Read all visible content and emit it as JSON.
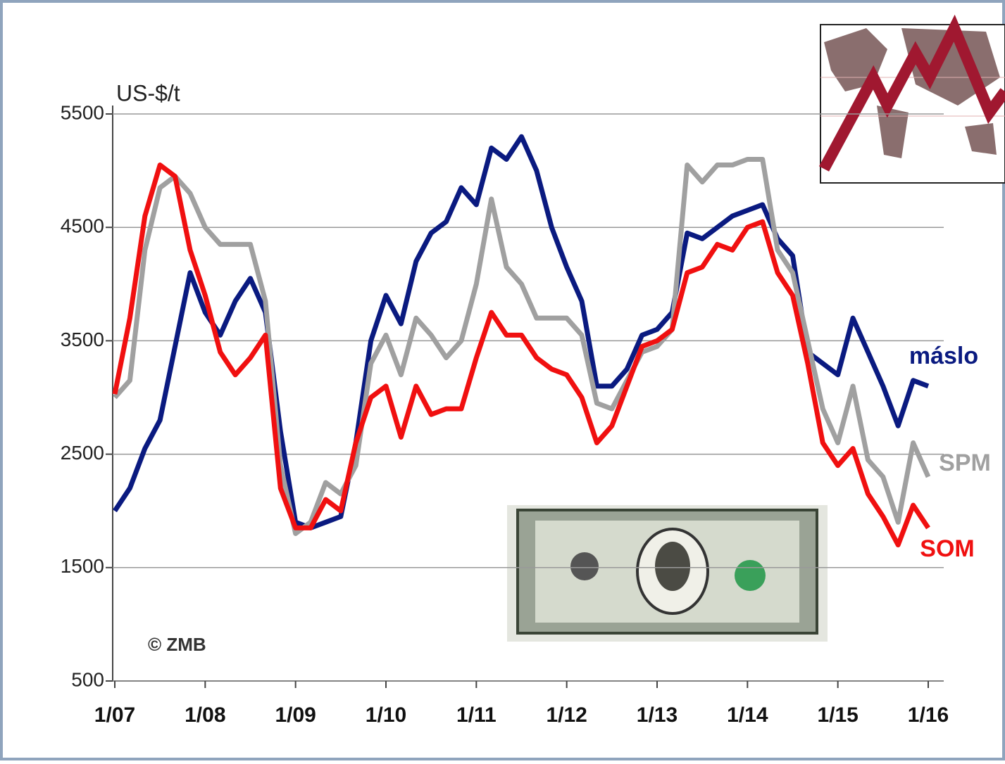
{
  "chart_data": {
    "type": "line",
    "y_label": "US-$/t",
    "annotation": "© ZMB",
    "categories": [
      "1/07",
      null,
      null,
      null,
      null,
      null,
      "1/08",
      null,
      null,
      null,
      null,
      null,
      "1/09",
      null,
      null,
      null,
      null,
      null,
      "1/10",
      null,
      null,
      null,
      null,
      null,
      "1/11",
      null,
      null,
      null,
      null,
      null,
      "1/12",
      null,
      null,
      null,
      null,
      null,
      "1/13",
      null,
      null,
      null,
      null,
      null,
      "1/14",
      null,
      null,
      null,
      null,
      null,
      "1/15",
      null,
      null,
      null,
      null,
      null,
      "1/16"
    ],
    "series": [
      {
        "name": "máslo",
        "color": "#0a1a80",
        "values": [
          2000,
          2200,
          2550,
          2800,
          3450,
          4100,
          3750,
          3550,
          3850,
          4050,
          3750,
          2700,
          1900,
          1850,
          1900,
          1950,
          2600,
          3500,
          3900,
          3650,
          4200,
          4450,
          4550,
          4850,
          4700,
          5200,
          5100,
          5300,
          5000,
          4500,
          4150,
          3850,
          3100,
          3100,
          3250,
          3550,
          3600,
          3750,
          4450,
          4400,
          4500,
          4600,
          4650,
          4700,
          4400,
          4250,
          3400,
          3300,
          3200,
          3700,
          3400,
          3100,
          2750,
          3150,
          3100
        ]
      },
      {
        "name": "SPM",
        "color": "#a0a0a0",
        "values": [
          3000,
          3150,
          4300,
          4850,
          4950,
          4800,
          4500,
          4350,
          4350,
          4350,
          3850,
          2400,
          1800,
          1900,
          2250,
          2150,
          2400,
          3300,
          3550,
          3200,
          3700,
          3550,
          3350,
          3500,
          4000,
          4750,
          4150,
          4000,
          3700,
          3700,
          3700,
          3550,
          2950,
          2900,
          3150,
          3400,
          3450,
          3600,
          5050,
          4900,
          5050,
          5050,
          5100,
          5100,
          4300,
          4100,
          3500,
          2900,
          2600,
          3100,
          2450,
          2300,
          1900,
          2600,
          2300
        ]
      },
      {
        "name": "SOM",
        "color": "#f01010",
        "values": [
          3030,
          3700,
          4600,
          5050,
          4950,
          4300,
          3900,
          3400,
          3200,
          3350,
          3550,
          2200,
          1850,
          1850,
          2100,
          2000,
          2600,
          3000,
          3100,
          2650,
          3100,
          2850,
          2900,
          2900,
          3350,
          3750,
          3550,
          3550,
          3350,
          3250,
          3200,
          3000,
          2600,
          2750,
          3100,
          3450,
          3500,
          3600,
          4100,
          4150,
          4350,
          4300,
          4500,
          4550,
          4100,
          3900,
          3300,
          2600,
          2400,
          2550,
          2150,
          1950,
          1700,
          2050,
          1850
        ]
      }
    ],
    "ylim": [
      500,
      5500
    ],
    "yticks": [
      500,
      1500,
      2500,
      3500,
      4500,
      5500
    ],
    "grid": true
  }
}
